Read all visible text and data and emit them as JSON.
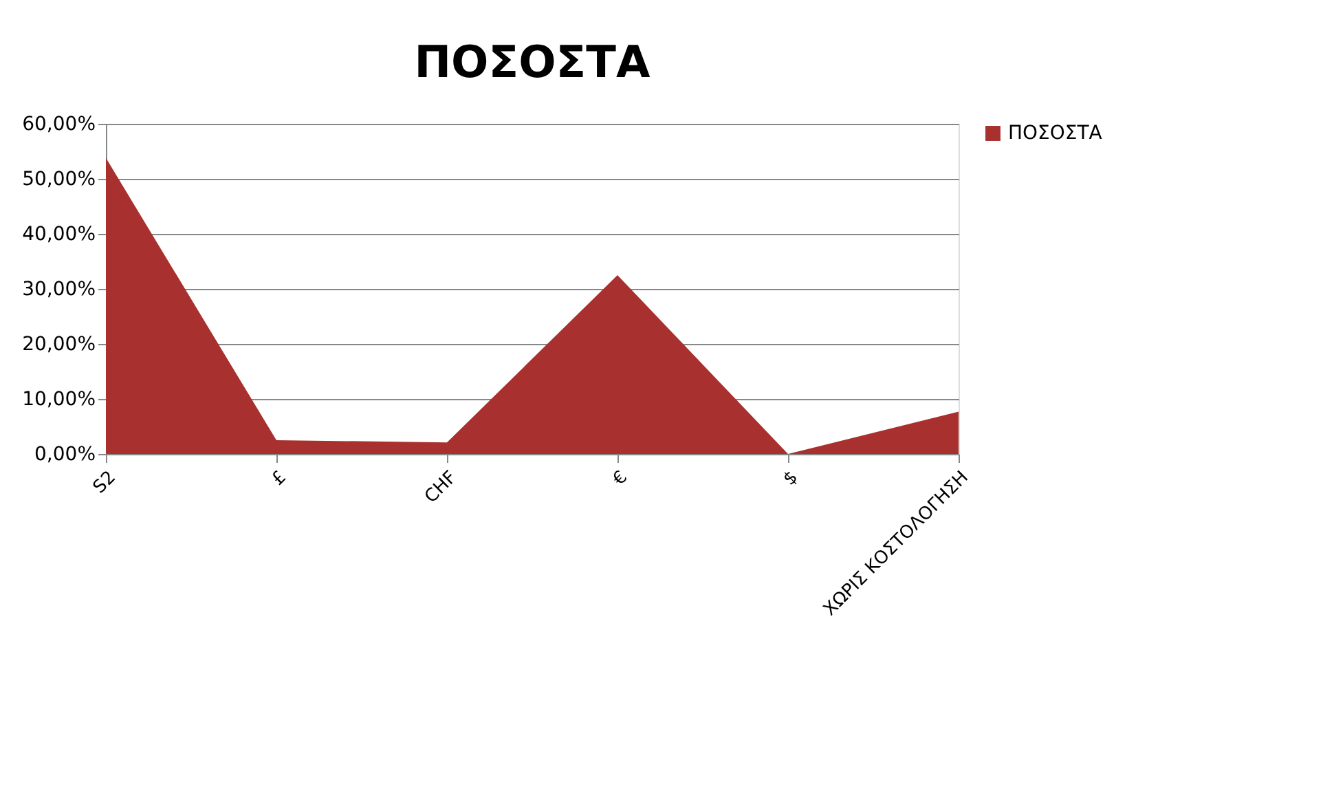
{
  "chart_data": {
    "type": "area",
    "title": "ΠΟΣΟΣΤΑ",
    "categories": [
      "S2",
      "£",
      "CHF",
      "€",
      "$",
      "ΧΩΡΙΣ ΚΟΣΤΟΛΟΓΗΣΗ"
    ],
    "series": [
      {
        "name": "ΠΟΣΟΣΤΑ",
        "color": "#a8312f",
        "values": [
          53.8,
          2.5,
          2.1,
          32.5,
          0,
          7.7
        ]
      }
    ],
    "ylim": [
      0,
      60
    ],
    "yticks": [
      {
        "value": 0,
        "label": "0,00%"
      },
      {
        "value": 10,
        "label": "10,00%"
      },
      {
        "value": 20,
        "label": "20,00%"
      },
      {
        "value": 30,
        "label": "30,00%"
      },
      {
        "value": 40,
        "label": "40,00%"
      },
      {
        "value": 50,
        "label": "50,00%"
      },
      {
        "value": 60,
        "label": "60,00%"
      }
    ],
    "grid": "y",
    "legend": "right"
  }
}
